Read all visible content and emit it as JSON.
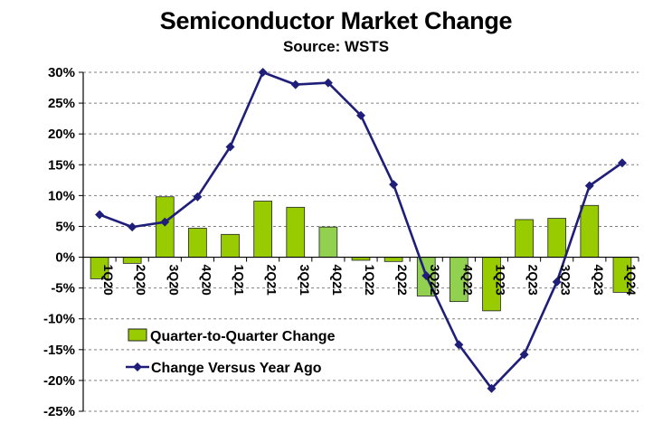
{
  "chart_data": {
    "type": "bar+line",
    "title": "Semiconductor Market Change",
    "subtitle": "Source: WSTS",
    "categories": [
      "1Q20",
      "2Q20",
      "3Q20",
      "4Q20",
      "1Q21",
      "2Q21",
      "3Q21",
      "4Q21",
      "1Q22",
      "2Q22",
      "3Q22",
      "4Q22",
      "1Q23",
      "2Q23",
      "3Q23",
      "4Q23",
      "1Q24"
    ],
    "y_ticks": [
      "30%",
      "25%",
      "20%",
      "15%",
      "10%",
      "5%",
      "0%",
      "-5%",
      "-10%",
      "-15%",
      "-20%",
      "-25%"
    ],
    "ylim": [
      -25,
      30
    ],
    "grid": true,
    "legend_placement": "lower-left",
    "series": [
      {
        "name": "Quarter-to-Quarter Change",
        "type": "bar",
        "values": [
          -3.5,
          -1.0,
          9.8,
          4.7,
          3.7,
          9.1,
          8.1,
          4.9,
          -0.5,
          -0.7,
          -6.3,
          -7.2,
          -8.7,
          6.1,
          6.3,
          8.4,
          -5.7
        ],
        "colors": [
          "#99cc00",
          "#99cc00",
          "#99cc00",
          "#99cc00",
          "#99cc00",
          "#99cc00",
          "#99cc00",
          "#92d050",
          "#99cc00",
          "#99cc00",
          "#92d050",
          "#92d050",
          "#99cc00",
          "#99cc00",
          "#99cc00",
          "#99cc00",
          "#99cc00"
        ]
      },
      {
        "name": "Change Versus Year Ago",
        "type": "line",
        "color": "#1f1f7a",
        "values": [
          6.9,
          4.9,
          5.7,
          9.8,
          17.9,
          30.0,
          28.0,
          28.3,
          23.0,
          11.8,
          -3.0,
          -14.2,
          -21.3,
          -15.8,
          -4.0,
          11.6,
          15.3
        ]
      }
    ]
  }
}
